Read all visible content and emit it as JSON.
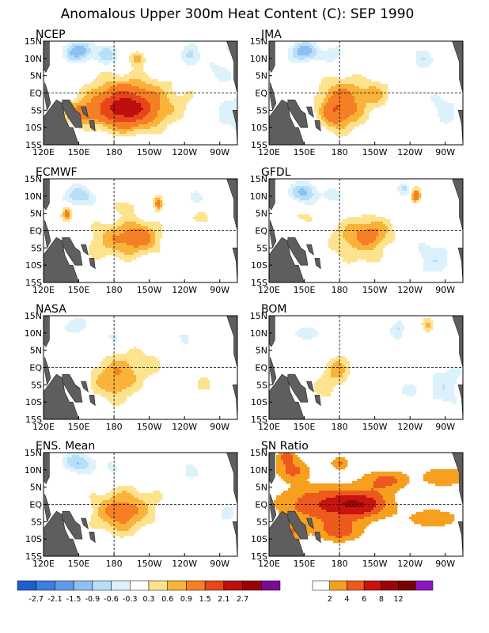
{
  "title": "Anomalous Upper 300m Heat Content (C): SEP 1990",
  "chart_data": [
    {
      "type": "heatmap",
      "xticks": [
        "120E",
        "150E",
        "180",
        "150W",
        "120W",
        "90W"
      ],
      "yticks": [
        "15N",
        "10N",
        "5N",
        "EQ",
        "5S",
        "10S",
        "15S"
      ],
      "panels": [
        {
          "label": "NCEP",
          "blobs": [
            [
              190,
              -5,
              25,
              5,
              1.6
            ],
            [
              185,
              -2,
              30,
              7,
              0.8
            ],
            [
              215,
              -3,
              45,
              8,
              0.4
            ],
            [
              150,
              -6,
              12,
              3,
              1.0
            ],
            [
              150,
              12,
              12,
              3,
              -1.2
            ],
            [
              175,
              11,
              10,
              3,
              -0.8
            ],
            [
              245,
              11,
              8,
              3,
              -0.8
            ],
            [
              280,
              -6,
              20,
              8,
              -0.5
            ],
            [
              265,
              6,
              15,
              4,
              -0.4
            ],
            [
              200,
              10,
              6,
              2,
              0.9
            ],
            [
              285,
              13,
              8,
              2,
              -1.3
            ]
          ]
        },
        {
          "label": "JMA",
          "blobs": [
            [
              183,
              -3,
              20,
              7,
              1.2
            ],
            [
              175,
              -6,
              10,
              4,
              0.6
            ],
            [
              212,
              0,
              12,
              4,
              0.6
            ],
            [
              150,
              12,
              12,
              3,
              -1.2
            ],
            [
              175,
              11,
              8,
              3,
              -0.5
            ],
            [
              250,
              10,
              8,
              3,
              -0.6
            ],
            [
              270,
              -4,
              15,
              8,
              -0.4
            ],
            [
              292,
              13,
              6,
              2,
              -1.2
            ]
          ]
        },
        {
          "label": "ECMWF",
          "blobs": [
            [
              200,
              -2,
              20,
              5,
              1.1
            ],
            [
              172,
              -3,
              20,
              6,
              0.5
            ],
            [
              150,
              10,
              12,
              3,
              -0.9
            ],
            [
              140,
              5,
              4,
              2,
              1.2
            ],
            [
              190,
              7,
              10,
              2,
              0.5
            ],
            [
              218,
              8,
              4,
              2,
              1.2
            ],
            [
              250,
              10,
              6,
              2,
              -0.5
            ],
            [
              255,
              4,
              10,
              2,
              0.4
            ],
            [
              285,
              12,
              6,
              2,
              -0.8
            ]
          ]
        },
        {
          "label": "GFDL",
          "blobs": [
            [
              207,
              -1,
              18,
              5,
              1.0
            ],
            [
              185,
              -3,
              15,
              6,
              0.5
            ],
            [
              150,
              11,
              12,
              3,
              -1.0
            ],
            [
              175,
              10,
              8,
              2,
              -0.5
            ],
            [
              235,
              12,
              5,
              2,
              -0.6
            ],
            [
              245,
              10,
              4,
              2,
              1.3
            ],
            [
              150,
              4,
              10,
              2,
              0.4
            ],
            [
              205,
              -9,
              10,
              3,
              0.3
            ],
            [
              260,
              -8,
              18,
              6,
              -0.5
            ],
            [
              285,
              12,
              6,
              2,
              -1.0
            ]
          ]
        },
        {
          "label": "NASA",
          "blobs": [
            [
              180,
              -4,
              20,
              6,
              0.8
            ],
            [
              200,
              1,
              30,
              5,
              0.4
            ],
            [
              150,
              12,
              12,
              3,
              -0.5
            ],
            [
              180,
              9,
              10,
              3,
              -0.4
            ],
            [
              240,
              9,
              8,
              3,
              -0.4
            ],
            [
              255,
              -5,
              15,
              4,
              0.3
            ],
            [
              285,
              12,
              6,
              2,
              -0.5
            ]
          ]
        },
        {
          "label": "BOM",
          "blobs": [
            [
              180,
              0,
              10,
              4,
              0.6
            ],
            [
              170,
              -5,
              15,
              6,
              0.4
            ],
            [
              150,
              10,
              12,
              3,
              -0.5
            ],
            [
              230,
              11,
              6,
              3,
              -0.6
            ],
            [
              255,
              12,
              5,
              2,
              0.8
            ],
            [
              270,
              -5,
              15,
              8,
              -0.5
            ],
            [
              295,
              -4,
              6,
              8,
              -0.8
            ],
            [
              240,
              -7,
              15,
              4,
              -0.3
            ]
          ]
        },
        {
          "label": "ENS. Mean",
          "blobs": [
            [
              185,
              -3,
              22,
              6,
              0.8
            ],
            [
              195,
              0,
              35,
              6,
              0.4
            ],
            [
              150,
              12,
              14,
              3,
              -0.9
            ],
            [
              178,
              10,
              8,
              3,
              -0.4
            ],
            [
              245,
              10,
              8,
              3,
              -0.4
            ],
            [
              275,
              -4,
              15,
              6,
              -0.3
            ],
            [
              285,
              12,
              6,
              2,
              -0.6
            ]
          ]
        },
        {
          "label": "SN Ratio",
          "blobs": [
            [
              165,
              0,
              40,
              6,
              5.5
            ],
            [
              200,
              0,
              25,
              4,
              5.5
            ],
            [
              220,
              7,
              20,
              3,
              4.5
            ],
            [
              270,
              8,
              20,
              3,
              4.0
            ],
            [
              260,
              -4,
              25,
              3,
              3.5
            ],
            [
              140,
              10,
              15,
              3,
              4.5
            ],
            [
              180,
              -8,
              20,
              3,
              4.5
            ],
            [
              140,
              -8,
              10,
              3,
              3.5
            ],
            [
              135,
              14,
              8,
              2,
              5.0
            ],
            [
              180,
              12,
              8,
              2,
              4.0
            ]
          ]
        }
      ]
    },
    {
      "type": "colorbar",
      "levels": [
        "-2.7",
        "-2.1",
        "-1.5",
        "-0.9",
        "-0.6",
        "-0.3",
        "0.3",
        "0.6",
        "0.9",
        "1.5",
        "2.1",
        "2.7"
      ],
      "colors": [
        "#1d5fd1",
        "#3d7ee2",
        "#5f9be8",
        "#8fbff2",
        "#b8dff8",
        "#dcf2fb",
        "#ffffff",
        "#fee38e",
        "#f9b33b",
        "#f47f24",
        "#e8451a",
        "#bd0f10",
        "#9a0000",
        "#7a0a96"
      ]
    },
    {
      "type": "colorbar",
      "levels": [
        "2",
        "4",
        "6",
        "8",
        "12"
      ],
      "colors": [
        "#ffffff",
        "#f7a01f",
        "#ed5a1d",
        "#c8130e",
        "#9b0505",
        "#7a0000",
        "#8c18c0"
      ]
    }
  ]
}
